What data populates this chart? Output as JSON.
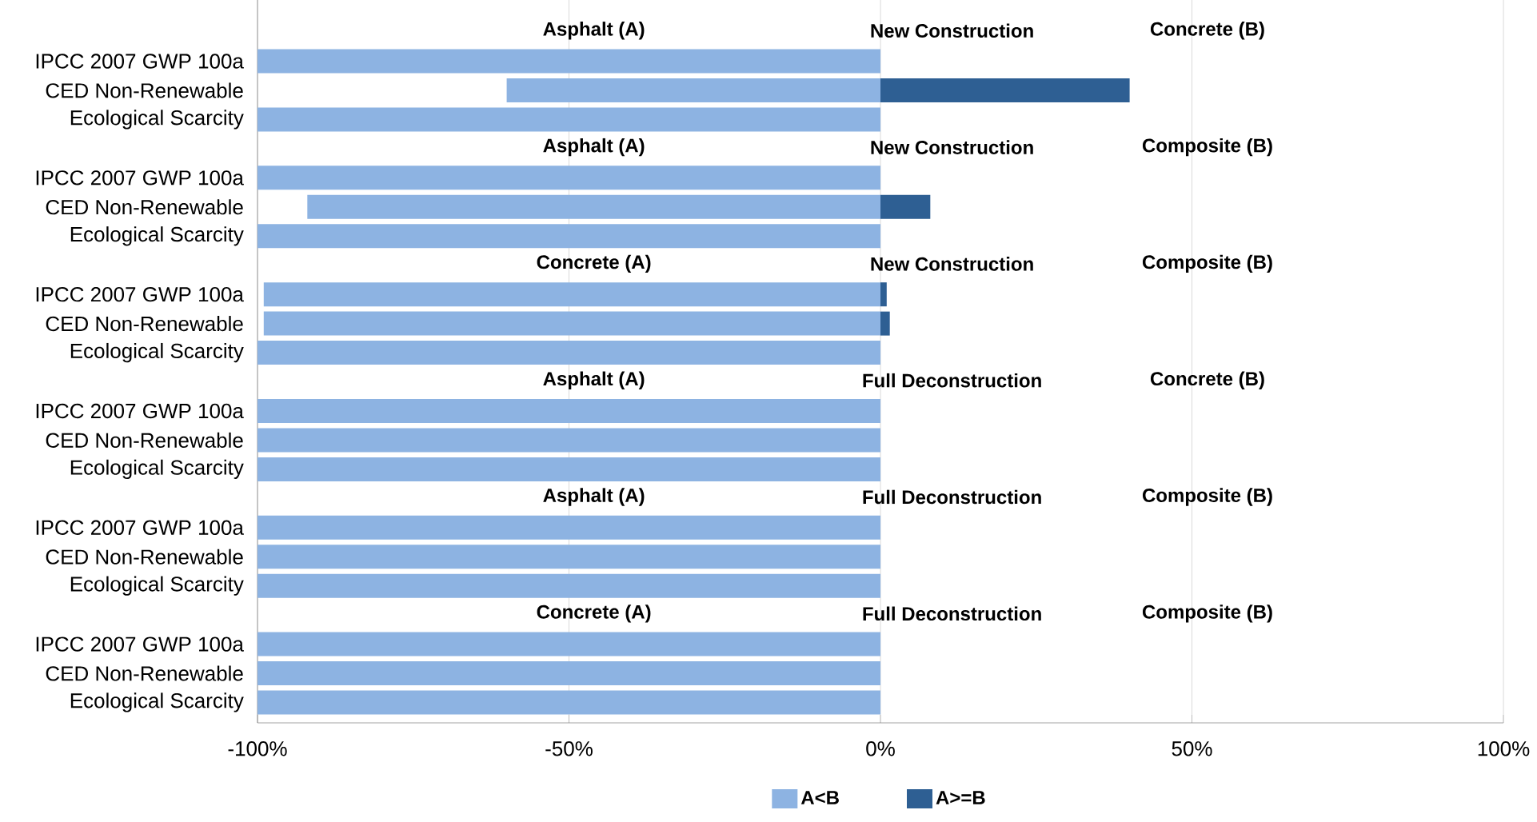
{
  "chart_data": {
    "type": "bar",
    "orientation": "horizontal",
    "categories": [
      "IPCC 2007 GWP 100a",
      "CED Non-Renewable",
      "Ecological Scarcity",
      "IPCC 2007 GWP 100a",
      "CED Non-Renewable",
      "Ecological Scarcity",
      "IPCC 2007 GWP 100a",
      "CED Non-Renewable",
      "Ecological Scarcity",
      "IPCC 2007 GWP 100a",
      "CED Non-Renewable",
      "Ecological Scarcity",
      "IPCC 2007 GWP 100a",
      "CED Non-Renewable",
      "Ecological Scarcity",
      "IPCC 2007 GWP 100a",
      "CED Non-Renewable",
      "Ecological Scarcity"
    ],
    "series": [
      {
        "name": "A<B",
        "color": "#8db3e2",
        "values": [
          -100,
          -60,
          -100,
          -100,
          -92,
          -100,
          -99,
          -99,
          -100,
          -100,
          -100,
          -100,
          -100,
          -100,
          -100,
          -100,
          -100,
          -100
        ]
      },
      {
        "name": "A>=B",
        "color": "#2e5f93",
        "values": [
          null,
          40,
          null,
          null,
          8,
          null,
          1,
          1.5,
          null,
          null,
          null,
          null,
          null,
          null,
          null,
          null,
          null,
          null
        ]
      }
    ],
    "xlim": [
      -100,
      100
    ],
    "xticks": [
      {
        "value": -100,
        "label": "-100%"
      },
      {
        "value": -50,
        "label": "-50%"
      },
      {
        "value": 0,
        "label": "0%"
      },
      {
        "value": 50,
        "label": "50%"
      },
      {
        "value": 100,
        "label": "100%"
      }
    ],
    "grid": "x",
    "legend": "bottom",
    "annotations": [
      "Asphalt (A)",
      "New Construction",
      "Concrete (B)",
      "Asphalt (A)",
      "New Construction",
      "Composite (B)",
      "Concrete (A)",
      "New Construction",
      "Composite (B)",
      "Asphalt (A)",
      "Full Deconstruction",
      "Concrete (B)",
      "Asphalt (A)",
      "Full Deconstruction",
      "Composite (B)",
      "Concrete (A)",
      "Full Deconstruction",
      "Composite (B)"
    ]
  }
}
